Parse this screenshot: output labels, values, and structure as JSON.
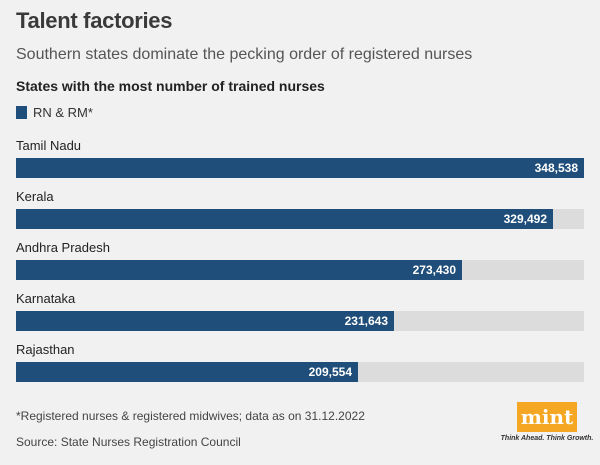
{
  "header": {
    "title": "Talent factories",
    "subtitle": "Southern states dominate the pecking order of registered nurses",
    "chart_heading": "States with the most number of trained nurses"
  },
  "legend": {
    "label": "RN & RM*",
    "color": "#1e4e79"
  },
  "chart_data": {
    "type": "bar",
    "orientation": "horizontal",
    "title": "States with the most number of trained nurses",
    "categories": [
      "Tamil Nadu",
      "Kerala",
      "Andhra Pradesh",
      "Karnataka",
      "Rajasthan"
    ],
    "series": [
      {
        "name": "RN & RM*",
        "values": [
          348538,
          329492,
          273430,
          231643,
          209554
        ],
        "labels": [
          "348,538",
          "329,492",
          "273,430",
          "231,643",
          "209,554"
        ]
      }
    ],
    "xlim": [
      0,
      348538
    ],
    "bar_color": "#1e4e79",
    "track_color": "#dcdcdc",
    "legend_position": "top-left",
    "grid": false
  },
  "footer": {
    "footnote": "*Registered nurses & registered midwives; data as on 31.12.2022",
    "source": "Source: State Nurses Registration Council"
  },
  "logo": {
    "text": "mint",
    "tagline": "Think Ahead. Think Growth.",
    "color": "#f5a623"
  }
}
